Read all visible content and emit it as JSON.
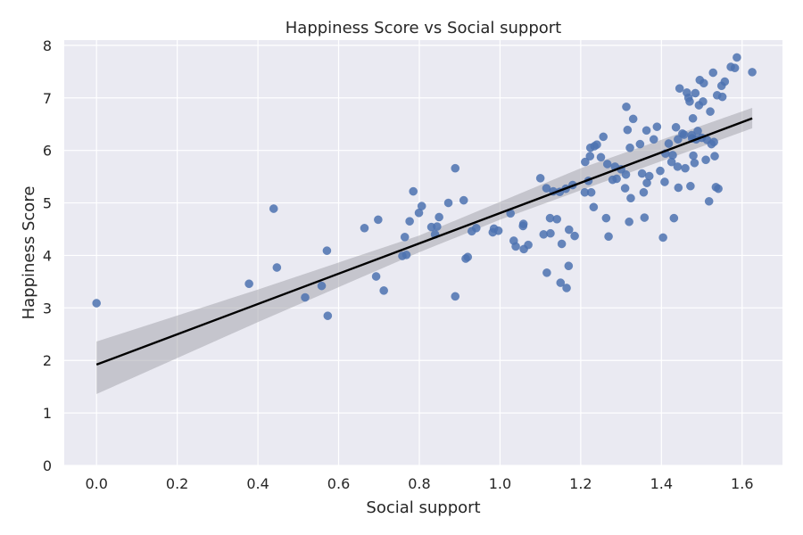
{
  "chart_data": {
    "type": "scatter",
    "title": "Happiness Score vs Social support",
    "xlabel": "Social support",
    "ylabel": "Happiness Score",
    "xlim": [
      -0.08,
      1.7
    ],
    "ylim": [
      0,
      8.1
    ],
    "xticks": [
      "0.0",
      "0.2",
      "0.4",
      "0.6",
      "0.8",
      "1.0",
      "1.2",
      "1.4",
      "1.6"
    ],
    "yticks": [
      "0",
      "1",
      "2",
      "3",
      "4",
      "5",
      "6",
      "7",
      "8"
    ],
    "grid": true,
    "colors": {
      "background": "#EAEAF2",
      "grid": "#FFFFFF",
      "points": "#4C72B0",
      "regression_line": "#000000",
      "confidence_band": "#A0A0A8"
    },
    "regression": {
      "x": [
        0.0,
        1.625
      ],
      "y": [
        1.92,
        6.61
      ],
      "ci_x": [
        0.0,
        0.4,
        0.8,
        1.0,
        1.2,
        1.625
      ],
      "ci_lower": [
        1.36,
        2.73,
        4.06,
        4.68,
        5.24,
        6.42
      ],
      "ci_upper": [
        2.36,
        3.35,
        4.38,
        5.02,
        5.66,
        6.81
      ]
    },
    "series": [
      {
        "x": [
          0.0,
          0.378,
          0.439,
          0.447,
          0.517,
          0.558,
          0.571,
          0.573,
          0.664,
          0.693,
          0.698,
          0.712,
          0.758,
          0.764,
          0.768,
          0.776,
          0.785,
          0.799,
          0.806,
          0.83,
          0.839,
          0.844,
          0.849,
          0.872,
          0.889,
          0.889,
          0.91,
          0.915,
          0.92,
          0.93,
          0.941,
          0.982,
          0.985,
          0.996,
          1.026,
          1.034,
          1.039,
          1.057,
          1.058,
          1.059,
          1.07,
          1.1,
          1.108,
          1.115,
          1.116,
          1.124,
          1.125,
          1.132,
          1.141,
          1.148,
          1.15,
          1.153,
          1.163,
          1.165,
          1.17,
          1.171,
          1.18,
          1.185,
          1.21,
          1.211,
          1.219,
          1.223,
          1.224,
          1.226,
          1.232,
          1.234,
          1.24,
          1.25,
          1.256,
          1.263,
          1.266,
          1.269,
          1.279,
          1.285,
          1.289,
          1.3,
          1.31,
          1.312,
          1.313,
          1.316,
          1.32,
          1.322,
          1.324,
          1.33,
          1.347,
          1.352,
          1.356,
          1.358,
          1.363,
          1.364,
          1.37,
          1.381,
          1.389,
          1.397,
          1.404,
          1.408,
          1.41,
          1.418,
          1.425,
          1.428,
          1.431,
          1.436,
          1.44,
          1.441,
          1.442,
          1.445,
          1.452,
          1.456,
          1.459,
          1.463,
          1.467,
          1.47,
          1.472,
          1.475,
          1.476,
          1.478,
          1.479,
          1.482,
          1.484,
          1.486,
          1.49,
          1.493,
          1.495,
          1.5,
          1.503,
          1.505,
          1.51,
          1.513,
          1.518,
          1.521,
          1.524,
          1.528,
          1.53,
          1.532,
          1.535,
          1.538,
          1.541,
          1.549,
          1.551,
          1.557,
          1.572,
          1.582,
          1.587,
          1.625
        ],
        "y": [
          3.09,
          3.46,
          4.89,
          3.77,
          3.2,
          3.42,
          4.09,
          2.85,
          4.52,
          3.6,
          4.68,
          3.33,
          3.99,
          4.35,
          4.01,
          4.65,
          5.22,
          4.81,
          4.94,
          4.54,
          4.4,
          4.55,
          4.73,
          5.0,
          5.66,
          3.22,
          5.05,
          3.94,
          3.97,
          4.46,
          4.52,
          4.44,
          4.51,
          4.47,
          4.8,
          4.28,
          4.17,
          4.56,
          4.6,
          4.12,
          4.2,
          5.47,
          4.4,
          5.28,
          3.67,
          4.71,
          4.42,
          5.22,
          4.69,
          5.21,
          3.48,
          4.22,
          5.27,
          3.38,
          3.8,
          4.49,
          5.34,
          4.37,
          5.2,
          5.78,
          5.42,
          5.89,
          6.05,
          5.2,
          4.92,
          6.08,
          6.11,
          5.87,
          6.26,
          4.71,
          5.74,
          4.36,
          5.44,
          5.69,
          5.46,
          5.64,
          5.28,
          5.54,
          6.83,
          6.39,
          4.64,
          6.05,
          5.09,
          6.6,
          6.12,
          5.56,
          5.2,
          4.72,
          6.38,
          5.38,
          5.51,
          6.21,
          6.45,
          5.61,
          4.34,
          5.4,
          5.94,
          6.13,
          5.78,
          5.91,
          4.71,
          6.44,
          5.69,
          6.21,
          5.29,
          7.18,
          6.32,
          6.3,
          5.66,
          7.1,
          7.0,
          6.93,
          5.32,
          6.29,
          6.23,
          6.61,
          5.9,
          5.76,
          7.09,
          6.21,
          6.37,
          6.86,
          7.34,
          6.24,
          6.93,
          7.28,
          5.82,
          6.2,
          5.03,
          6.74,
          6.12,
          7.48,
          6.16,
          5.89,
          5.3,
          7.05,
          5.27,
          7.23,
          7.02,
          7.31,
          7.59,
          7.57,
          7.77,
          7.49
        ]
      }
    ]
  }
}
